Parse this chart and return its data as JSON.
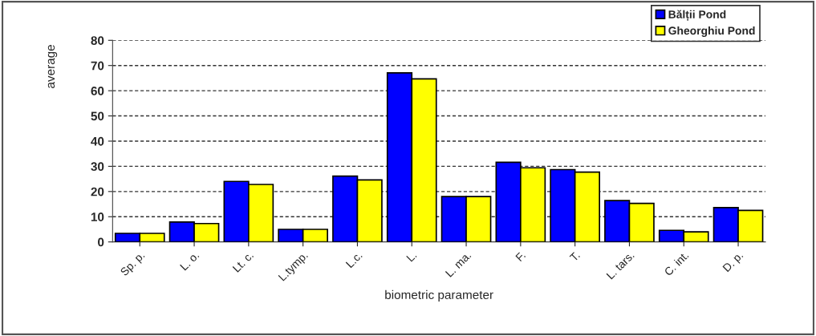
{
  "chart_data": {
    "type": "bar",
    "xlabel": "biometric parameter",
    "ylabel": "average",
    "categories": [
      "Sp. p.",
      "L. o.",
      "Lt. c.",
      "L.tymp.",
      "L.c.",
      "L.",
      "L. ma.",
      "F.",
      "T.",
      "L. tars.",
      "C. int.",
      "D. p."
    ],
    "series": [
      {
        "name": "Bălții Pond",
        "color": "#0000ff",
        "values": [
          3.4,
          7.9,
          24,
          5,
          26.1,
          67.1,
          18,
          31.6,
          28.7,
          16.4,
          4.6,
          13.6
        ]
      },
      {
        "name": "Gheorghiu Pond",
        "color": "#ffff00",
        "values": [
          3.4,
          7.3,
          22.8,
          5,
          24.6,
          64.7,
          18,
          29.4,
          27.7,
          15.3,
          4,
          12.5
        ]
      }
    ],
    "ylim": [
      0,
      80
    ],
    "yticks": [
      0,
      10,
      20,
      30,
      40,
      50,
      60,
      70,
      80
    ],
    "grid": "y",
    "legend": "top right"
  }
}
